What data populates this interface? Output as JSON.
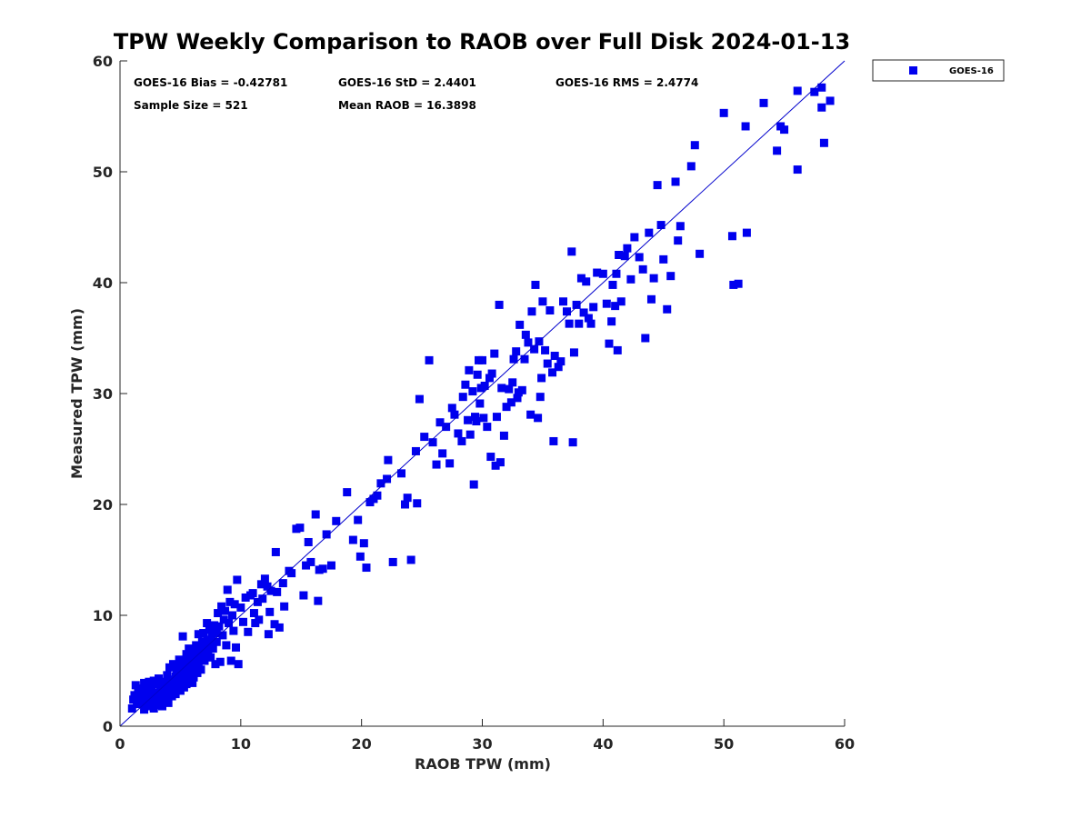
{
  "chart_data": {
    "type": "scatter",
    "title": "TPW Weekly Comparison to RAOB over Full Disk 2024-01-13",
    "xlabel": "RAOB TPW (mm)",
    "ylabel": "Measured TPW (mm)",
    "xlim": [
      0,
      60
    ],
    "ylim": [
      0,
      60
    ],
    "xticks": [
      "0",
      "10",
      "20",
      "30",
      "40",
      "50",
      "60"
    ],
    "yticks": [
      "0",
      "10",
      "20",
      "30",
      "40",
      "50",
      "60"
    ],
    "grid": false,
    "legend_position": "outside-top-right",
    "reference_line": {
      "from": [
        0,
        0
      ],
      "to": [
        60,
        60
      ],
      "color": "#0000cc"
    },
    "stats": {
      "bias": "GOES-16 Bias = -0.42781",
      "std": "GOES-16 StD = 2.4401",
      "rms": "GOES-16 RMS = 2.4774",
      "sample_size": "Sample Size = 521",
      "mean_raob": "Mean RAOB = 16.3898"
    },
    "series": [
      {
        "name": "GOES-16",
        "color": "#0000ee",
        "marker": "square",
        "points": [
          [
            1.0,
            1.6
          ],
          [
            1.1,
            2.4
          ],
          [
            1.2,
            2.8
          ],
          [
            1.3,
            3.7
          ],
          [
            1.4,
            2.2
          ],
          [
            1.5,
            3.0
          ],
          [
            1.6,
            2.0
          ],
          [
            1.7,
            2.6
          ],
          [
            1.8,
            3.4
          ],
          [
            1.9,
            2.1
          ],
          [
            2.0,
            1.5
          ],
          [
            2.0,
            3.9
          ],
          [
            2.1,
            2.9
          ],
          [
            2.2,
            2.4
          ],
          [
            2.3,
            3.3
          ],
          [
            2.4,
            1.8
          ],
          [
            2.4,
            4.0
          ],
          [
            2.5,
            2.7
          ],
          [
            2.6,
            3.5
          ],
          [
            2.7,
            2.2
          ],
          [
            2.8,
            1.6
          ],
          [
            2.8,
            4.1
          ],
          [
            2.9,
            3.0
          ],
          [
            3.0,
            2.5
          ],
          [
            3.0,
            3.8
          ],
          [
            3.1,
            1.9
          ],
          [
            3.2,
            2.8
          ],
          [
            3.2,
            4.3
          ],
          [
            3.3,
            3.3
          ],
          [
            3.4,
            2.3
          ],
          [
            3.5,
            3.7
          ],
          [
            3.5,
            1.8
          ],
          [
            3.6,
            2.9
          ],
          [
            3.7,
            4.0
          ],
          [
            3.8,
            3.2
          ],
          [
            3.9,
            2.5
          ],
          [
            3.9,
            4.6
          ],
          [
            4.0,
            3.6
          ],
          [
            4.0,
            2.1
          ],
          [
            4.1,
            5.3
          ],
          [
            4.2,
            3.0
          ],
          [
            4.2,
            4.2
          ],
          [
            4.3,
            2.7
          ],
          [
            4.4,
            3.9
          ],
          [
            4.4,
            5.6
          ],
          [
            4.5,
            3.3
          ],
          [
            4.6,
            4.5
          ],
          [
            4.6,
            2.9
          ],
          [
            4.7,
            5.0
          ],
          [
            4.8,
            3.7
          ],
          [
            4.9,
            4.3
          ],
          [
            4.9,
            6.0
          ],
          [
            5.0,
            3.2
          ],
          [
            5.0,
            5.4
          ],
          [
            5.1,
            4.0
          ],
          [
            5.2,
            8.1
          ],
          [
            5.2,
            4.7
          ],
          [
            5.3,
            3.5
          ],
          [
            5.4,
            5.8
          ],
          [
            5.4,
            4.4
          ],
          [
            5.5,
            6.5
          ],
          [
            5.5,
            3.8
          ],
          [
            5.6,
            5.1
          ],
          [
            5.7,
            4.2
          ],
          [
            5.7,
            7.0
          ],
          [
            5.8,
            5.5
          ],
          [
            5.9,
            4.6
          ],
          [
            5.9,
            6.2
          ],
          [
            6.0,
            3.9
          ],
          [
            6.0,
            5.0
          ],
          [
            6.1,
            6.8
          ],
          [
            6.1,
            4.4
          ],
          [
            6.2,
            5.7
          ],
          [
            6.3,
            7.3
          ],
          [
            6.3,
            5.2
          ],
          [
            6.4,
            4.8
          ],
          [
            6.4,
            6.4
          ],
          [
            6.5,
            8.3
          ],
          [
            6.5,
            5.6
          ],
          [
            6.6,
            7.0
          ],
          [
            6.7,
            6.1
          ],
          [
            6.7,
            5.1
          ],
          [
            6.8,
            7.6
          ],
          [
            6.9,
            6.6
          ],
          [
            6.9,
            8.4
          ],
          [
            7.0,
            5.9
          ],
          [
            7.0,
            7.2
          ],
          [
            7.1,
            6.4
          ],
          [
            7.2,
            9.3
          ],
          [
            7.2,
            7.8
          ],
          [
            7.3,
            6.8
          ],
          [
            7.4,
            8.7
          ],
          [
            7.4,
            7.4
          ],
          [
            7.5,
            6.2
          ],
          [
            7.6,
            8.1
          ],
          [
            7.7,
            7.0
          ],
          [
            7.8,
            9.1
          ],
          [
            7.9,
            5.6
          ],
          [
            8.0,
            8.4
          ],
          [
            8.0,
            7.6
          ],
          [
            8.1,
            10.2
          ],
          [
            8.2,
            9.0
          ],
          [
            8.3,
            5.8
          ],
          [
            8.4,
            10.8
          ],
          [
            8.5,
            8.2
          ],
          [
            8.6,
            9.6
          ],
          [
            8.7,
            10.4
          ],
          [
            8.8,
            7.3
          ],
          [
            8.9,
            12.3
          ],
          [
            9.0,
            9.3
          ],
          [
            9.1,
            11.2
          ],
          [
            9.2,
            5.9
          ],
          [
            9.3,
            10.0
          ],
          [
            9.4,
            8.6
          ],
          [
            9.5,
            11.0
          ],
          [
            9.6,
            7.1
          ],
          [
            9.7,
            13.2
          ],
          [
            9.8,
            5.6
          ],
          [
            10.0,
            10.7
          ],
          [
            10.2,
            9.4
          ],
          [
            10.4,
            11.6
          ],
          [
            10.6,
            8.5
          ],
          [
            10.8,
            11.8
          ],
          [
            11.0,
            12.0
          ],
          [
            11.1,
            10.2
          ],
          [
            11.2,
            9.3
          ],
          [
            11.4,
            11.2
          ],
          [
            11.5,
            9.6
          ],
          [
            11.7,
            12.8
          ],
          [
            11.8,
            11.5
          ],
          [
            12.0,
            13.3
          ],
          [
            12.2,
            12.6
          ],
          [
            12.3,
            8.3
          ],
          [
            12.4,
            10.3
          ],
          [
            12.5,
            12.2
          ],
          [
            12.8,
            9.2
          ],
          [
            12.9,
            15.7
          ],
          [
            13.0,
            12.1
          ],
          [
            13.2,
            8.9
          ],
          [
            13.5,
            12.9
          ],
          [
            13.6,
            10.8
          ],
          [
            14.0,
            14.0
          ],
          [
            14.2,
            13.8
          ],
          [
            14.6,
            17.8
          ],
          [
            14.9,
            17.9
          ],
          [
            15.2,
            11.8
          ],
          [
            15.4,
            14.5
          ],
          [
            15.6,
            16.6
          ],
          [
            15.8,
            14.8
          ],
          [
            16.2,
            19.1
          ],
          [
            16.4,
            11.3
          ],
          [
            16.5,
            14.1
          ],
          [
            16.8,
            14.2
          ],
          [
            17.1,
            17.3
          ],
          [
            17.5,
            14.5
          ],
          [
            17.9,
            18.5
          ],
          [
            18.8,
            21.1
          ],
          [
            19.3,
            16.8
          ],
          [
            19.7,
            18.6
          ],
          [
            19.9,
            15.3
          ],
          [
            20.2,
            16.5
          ],
          [
            20.4,
            14.3
          ],
          [
            20.7,
            20.2
          ],
          [
            21.0,
            20.5
          ],
          [
            21.3,
            20.8
          ],
          [
            21.6,
            21.9
          ],
          [
            22.1,
            22.3
          ],
          [
            22.2,
            24.0
          ],
          [
            22.6,
            14.8
          ],
          [
            23.3,
            22.8
          ],
          [
            23.6,
            20.0
          ],
          [
            23.8,
            20.6
          ],
          [
            24.1,
            15.0
          ],
          [
            24.5,
            24.8
          ],
          [
            24.6,
            20.1
          ],
          [
            24.8,
            29.5
          ],
          [
            25.2,
            26.1
          ],
          [
            25.6,
            33.0
          ],
          [
            25.9,
            25.6
          ],
          [
            26.2,
            23.6
          ],
          [
            26.5,
            27.4
          ],
          [
            26.7,
            24.6
          ],
          [
            27.0,
            27.0
          ],
          [
            27.3,
            23.7
          ],
          [
            27.5,
            28.7
          ],
          [
            27.7,
            28.1
          ],
          [
            28.0,
            26.4
          ],
          [
            28.3,
            25.7
          ],
          [
            28.4,
            29.7
          ],
          [
            28.6,
            30.8
          ],
          [
            28.8,
            27.6
          ],
          [
            28.9,
            32.1
          ],
          [
            29.0,
            26.3
          ],
          [
            29.2,
            30.2
          ],
          [
            29.3,
            21.8
          ],
          [
            29.4,
            27.9
          ],
          [
            29.5,
            27.5
          ],
          [
            29.6,
            31.7
          ],
          [
            29.7,
            33.0
          ],
          [
            29.8,
            29.1
          ],
          [
            29.9,
            30.5
          ],
          [
            30.0,
            33.0
          ],
          [
            30.1,
            27.8
          ],
          [
            30.2,
            30.7
          ],
          [
            30.4,
            27.0
          ],
          [
            30.6,
            31.4
          ],
          [
            30.7,
            24.3
          ],
          [
            30.8,
            31.8
          ],
          [
            31.0,
            33.6
          ],
          [
            31.1,
            23.5
          ],
          [
            31.2,
            27.9
          ],
          [
            31.4,
            38.0
          ],
          [
            31.5,
            23.8
          ],
          [
            31.6,
            30.5
          ],
          [
            31.8,
            26.2
          ],
          [
            32.0,
            28.8
          ],
          [
            32.2,
            30.4
          ],
          [
            32.4,
            29.2
          ],
          [
            32.5,
            31.0
          ],
          [
            32.6,
            33.1
          ],
          [
            32.8,
            33.8
          ],
          [
            32.9,
            29.6
          ],
          [
            33.0,
            30.1
          ],
          [
            33.1,
            36.2
          ],
          [
            33.3,
            30.3
          ],
          [
            33.5,
            33.1
          ],
          [
            33.6,
            35.3
          ],
          [
            33.8,
            34.6
          ],
          [
            34.0,
            28.1
          ],
          [
            34.1,
            37.4
          ],
          [
            34.3,
            34.0
          ],
          [
            34.4,
            39.8
          ],
          [
            34.6,
            27.8
          ],
          [
            34.7,
            34.7
          ],
          [
            34.8,
            29.7
          ],
          [
            34.9,
            31.4
          ],
          [
            35.0,
            38.3
          ],
          [
            35.2,
            33.9
          ],
          [
            35.4,
            32.7
          ],
          [
            35.6,
            37.5
          ],
          [
            35.8,
            31.9
          ],
          [
            35.9,
            25.7
          ],
          [
            36.0,
            33.4
          ],
          [
            36.3,
            32.4
          ],
          [
            36.5,
            32.9
          ],
          [
            36.7,
            38.3
          ],
          [
            37.0,
            37.4
          ],
          [
            37.2,
            36.3
          ],
          [
            37.4,
            42.8
          ],
          [
            37.5,
            25.6
          ],
          [
            37.6,
            33.7
          ],
          [
            37.8,
            38.0
          ],
          [
            38.0,
            36.3
          ],
          [
            38.2,
            40.4
          ],
          [
            38.4,
            37.3
          ],
          [
            38.6,
            40.1
          ],
          [
            38.8,
            36.8
          ],
          [
            39.0,
            36.3
          ],
          [
            39.2,
            37.8
          ],
          [
            39.5,
            40.9
          ],
          [
            40.0,
            40.8
          ],
          [
            40.3,
            38.1
          ],
          [
            40.5,
            34.5
          ],
          [
            40.7,
            36.5
          ],
          [
            40.8,
            39.8
          ],
          [
            41.0,
            37.9
          ],
          [
            41.1,
            40.8
          ],
          [
            41.2,
            33.9
          ],
          [
            41.3,
            42.5
          ],
          [
            41.5,
            38.3
          ],
          [
            41.8,
            42.4
          ],
          [
            42.0,
            43.1
          ],
          [
            42.3,
            40.3
          ],
          [
            42.6,
            44.1
          ],
          [
            43.0,
            42.3
          ],
          [
            43.3,
            41.2
          ],
          [
            43.5,
            35.0
          ],
          [
            43.8,
            44.5
          ],
          [
            44.0,
            38.5
          ],
          [
            44.2,
            40.4
          ],
          [
            44.5,
            48.8
          ],
          [
            44.8,
            45.2
          ],
          [
            45.0,
            42.1
          ],
          [
            45.3,
            37.6
          ],
          [
            45.6,
            40.6
          ],
          [
            46.0,
            49.1
          ],
          [
            46.2,
            43.8
          ],
          [
            46.4,
            45.1
          ],
          [
            47.3,
            50.5
          ],
          [
            47.6,
            52.4
          ],
          [
            48.0,
            42.6
          ],
          [
            50.0,
            55.3
          ],
          [
            50.7,
            44.2
          ],
          [
            50.8,
            39.8
          ],
          [
            51.2,
            39.9
          ],
          [
            51.8,
            54.1
          ],
          [
            51.9,
            44.5
          ],
          [
            53.3,
            56.2
          ],
          [
            54.4,
            51.9
          ],
          [
            54.7,
            54.1
          ],
          [
            55.0,
            53.8
          ],
          [
            56.1,
            50.2
          ],
          [
            56.1,
            57.3
          ],
          [
            57.5,
            57.2
          ],
          [
            58.1,
            57.6
          ],
          [
            58.1,
            55.8
          ],
          [
            58.3,
            52.6
          ],
          [
            58.8,
            56.4
          ]
        ]
      }
    ]
  }
}
